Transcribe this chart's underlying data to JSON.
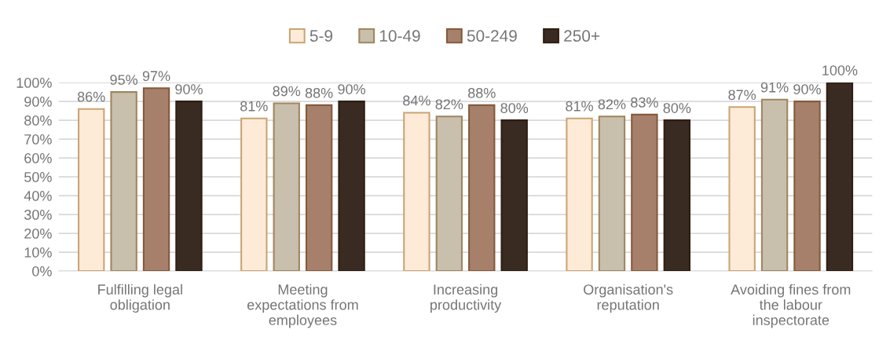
{
  "chart_data": {
    "type": "bar",
    "categories": [
      "Fulfilling legal\nobligation",
      "Meeting\nexpectations from\nemployees",
      "Increasing\nproductivity",
      "Organisation's\nreputation",
      "Avoiding fines from\nthe labour\ninspectorate"
    ],
    "series": [
      {
        "name": "5-9",
        "color": "#fdebd7",
        "values": [
          86,
          81,
          84,
          81,
          87
        ],
        "value_labels": [
          "86%",
          "81%",
          "84%",
          "81%",
          "87%"
        ]
      },
      {
        "name": "10-49",
        "color": "#c8bfad",
        "values": [
          95,
          89,
          82,
          82,
          91
        ],
        "value_labels": [
          "95%",
          "89%",
          "82%",
          "82%",
          "91%"
        ]
      },
      {
        "name": "50-249",
        "color": "#a6806b",
        "values": [
          97,
          88,
          88,
          83,
          90
        ],
        "value_labels": [
          "97%",
          "88%",
          "88%",
          "83%",
          "90%"
        ]
      },
      {
        "name": "250+",
        "color": "#3a2b22",
        "values": [
          90,
          90,
          80,
          80,
          100
        ],
        "value_labels": [
          "90%",
          "90%",
          "80%",
          "80%",
          "100%"
        ]
      }
    ],
    "ylim": [
      0,
      100
    ],
    "yticks": [
      {
        "value": 0,
        "label": "0%"
      },
      {
        "value": 10,
        "label": "10%"
      },
      {
        "value": 20,
        "label": "20%"
      },
      {
        "value": 30,
        "label": "30%"
      },
      {
        "value": 40,
        "label": "40%"
      },
      {
        "value": 50,
        "label": "50%"
      },
      {
        "value": 60,
        "label": "60%"
      },
      {
        "value": 70,
        "label": "70%"
      },
      {
        "value": 80,
        "label": "80%"
      },
      {
        "value": 90,
        "label": "90%"
      },
      {
        "value": 100,
        "label": "100%"
      }
    ],
    "grid": "y",
    "legend": "top"
  }
}
